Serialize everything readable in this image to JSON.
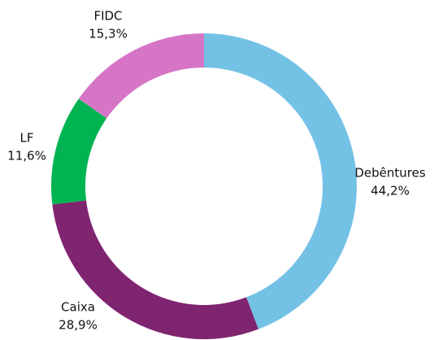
{
  "chart_data": {
    "type": "donut",
    "categories": [
      "Debêntures",
      "Caixa",
      "LF",
      "FIDC"
    ],
    "values": [
      44.2,
      28.9,
      11.6,
      15.3
    ],
    "value_labels": [
      "44,2%",
      "28,9%",
      "11,6%",
      "15,3%"
    ],
    "colors": [
      "#74c1e6",
      "#7f2570",
      "#00b451",
      "#d675c6"
    ]
  }
}
